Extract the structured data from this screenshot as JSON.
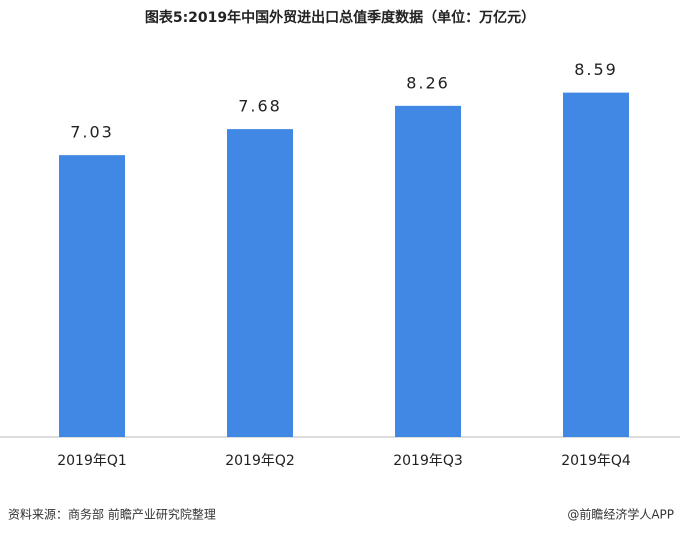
{
  "chart_data": {
    "type": "bar",
    "title": "图表5:2019年中国外贸进出口总值季度数据（单位：万亿元）",
    "categories": [
      "2019年Q1",
      "2019年Q2",
      "2019年Q3",
      "2019年Q4"
    ],
    "values": [
      7.03,
      7.68,
      8.26,
      8.59
    ],
    "color": "#4088e3",
    "ylim": [
      0,
      10.9
    ],
    "source": "资料来源：商务部 前瞻产业研究院整理",
    "credit": "@前瞻经济学人APP"
  }
}
